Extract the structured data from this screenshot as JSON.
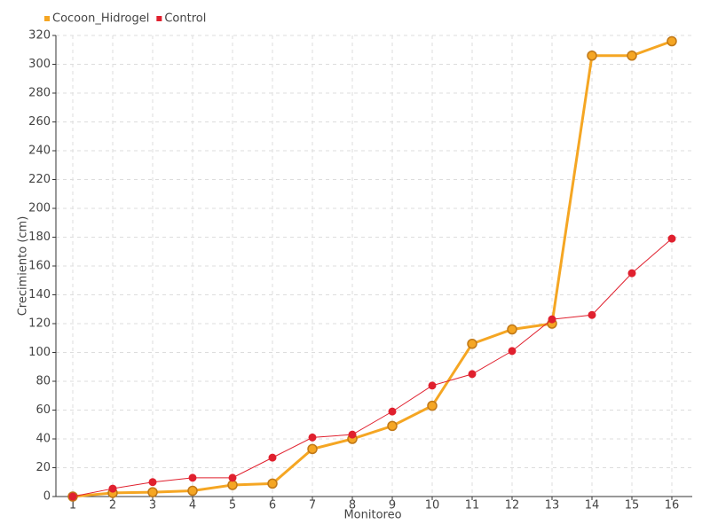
{
  "chart_data": {
    "type": "line",
    "x_label": "Monitoreo",
    "y_label": "Crecimiento (cm)",
    "categories": [
      "1",
      "2",
      "3",
      "4",
      "5",
      "6",
      "7",
      "8",
      "9",
      "10",
      "11",
      "12",
      "13",
      "14",
      "15",
      "16"
    ],
    "series": [
      {
        "name": "Cocoon_Hidrogel",
        "color": "#f5a623",
        "values": [
          0,
          2.5,
          3,
          4,
          8,
          9,
          33,
          40,
          49,
          63,
          106,
          116,
          120,
          306,
          306,
          316
        ]
      },
      {
        "name": "Control",
        "color": "#e0202e",
        "values": [
          0,
          5.5,
          10,
          13,
          13,
          27,
          41,
          43,
          59,
          77,
          85,
          101,
          123,
          126,
          155,
          179
        ]
      }
    ],
    "ylim": [
      0,
      320
    ],
    "yticks": [
      0,
      20,
      40,
      60,
      80,
      100,
      120,
      140,
      160,
      180,
      200,
      220,
      240,
      260,
      280,
      300,
      320
    ],
    "grid": true,
    "legend": "top-left"
  }
}
